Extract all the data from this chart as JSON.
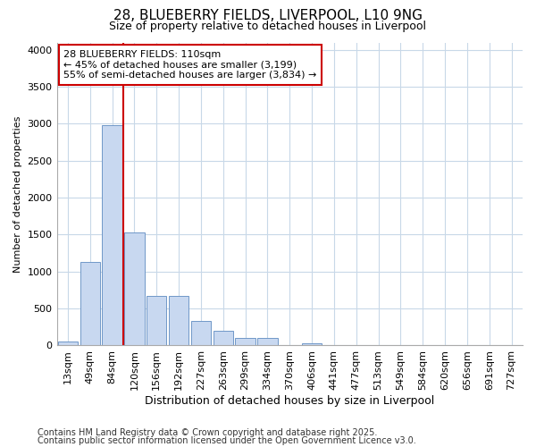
{
  "title_line1": "28, BLUEBERRY FIELDS, LIVERPOOL, L10 9NG",
  "title_line2": "Size of property relative to detached houses in Liverpool",
  "xlabel": "Distribution of detached houses by size in Liverpool",
  "ylabel": "Number of detached properties",
  "categories": [
    "13sqm",
    "49sqm",
    "84sqm",
    "120sqm",
    "156sqm",
    "192sqm",
    "227sqm",
    "263sqm",
    "299sqm",
    "334sqm",
    "370sqm",
    "406sqm",
    "441sqm",
    "477sqm",
    "513sqm",
    "549sqm",
    "584sqm",
    "620sqm",
    "656sqm",
    "691sqm",
    "727sqm"
  ],
  "values": [
    50,
    1130,
    2980,
    1530,
    670,
    670,
    330,
    200,
    100,
    100,
    0,
    30,
    0,
    0,
    0,
    0,
    0,
    0,
    0,
    0,
    0
  ],
  "bar_color": "#c8d8f0",
  "bar_edge_color": "#7098c8",
  "vline_color": "#cc0000",
  "vline_x": 2.5,
  "annotation_text": "28 BLUEBERRY FIELDS: 110sqm\n← 45% of detached houses are smaller (3,199)\n55% of semi-detached houses are larger (3,834) →",
  "annotation_box_facecolor": "#ffffff",
  "annotation_box_edgecolor": "#cc0000",
  "ylim": [
    0,
    4100
  ],
  "yticks": [
    0,
    500,
    1000,
    1500,
    2000,
    2500,
    3000,
    3500,
    4000
  ],
  "plot_bg_color": "#ffffff",
  "fig_bg_color": "#ffffff",
  "grid_color": "#c8d8e8",
  "footer_line1": "Contains HM Land Registry data © Crown copyright and database right 2025.",
  "footer_line2": "Contains public sector information licensed under the Open Government Licence v3.0.",
  "title1_fontsize": 11,
  "title2_fontsize": 9,
  "xlabel_fontsize": 9,
  "ylabel_fontsize": 8,
  "tick_fontsize": 8,
  "footer_fontsize": 7
}
